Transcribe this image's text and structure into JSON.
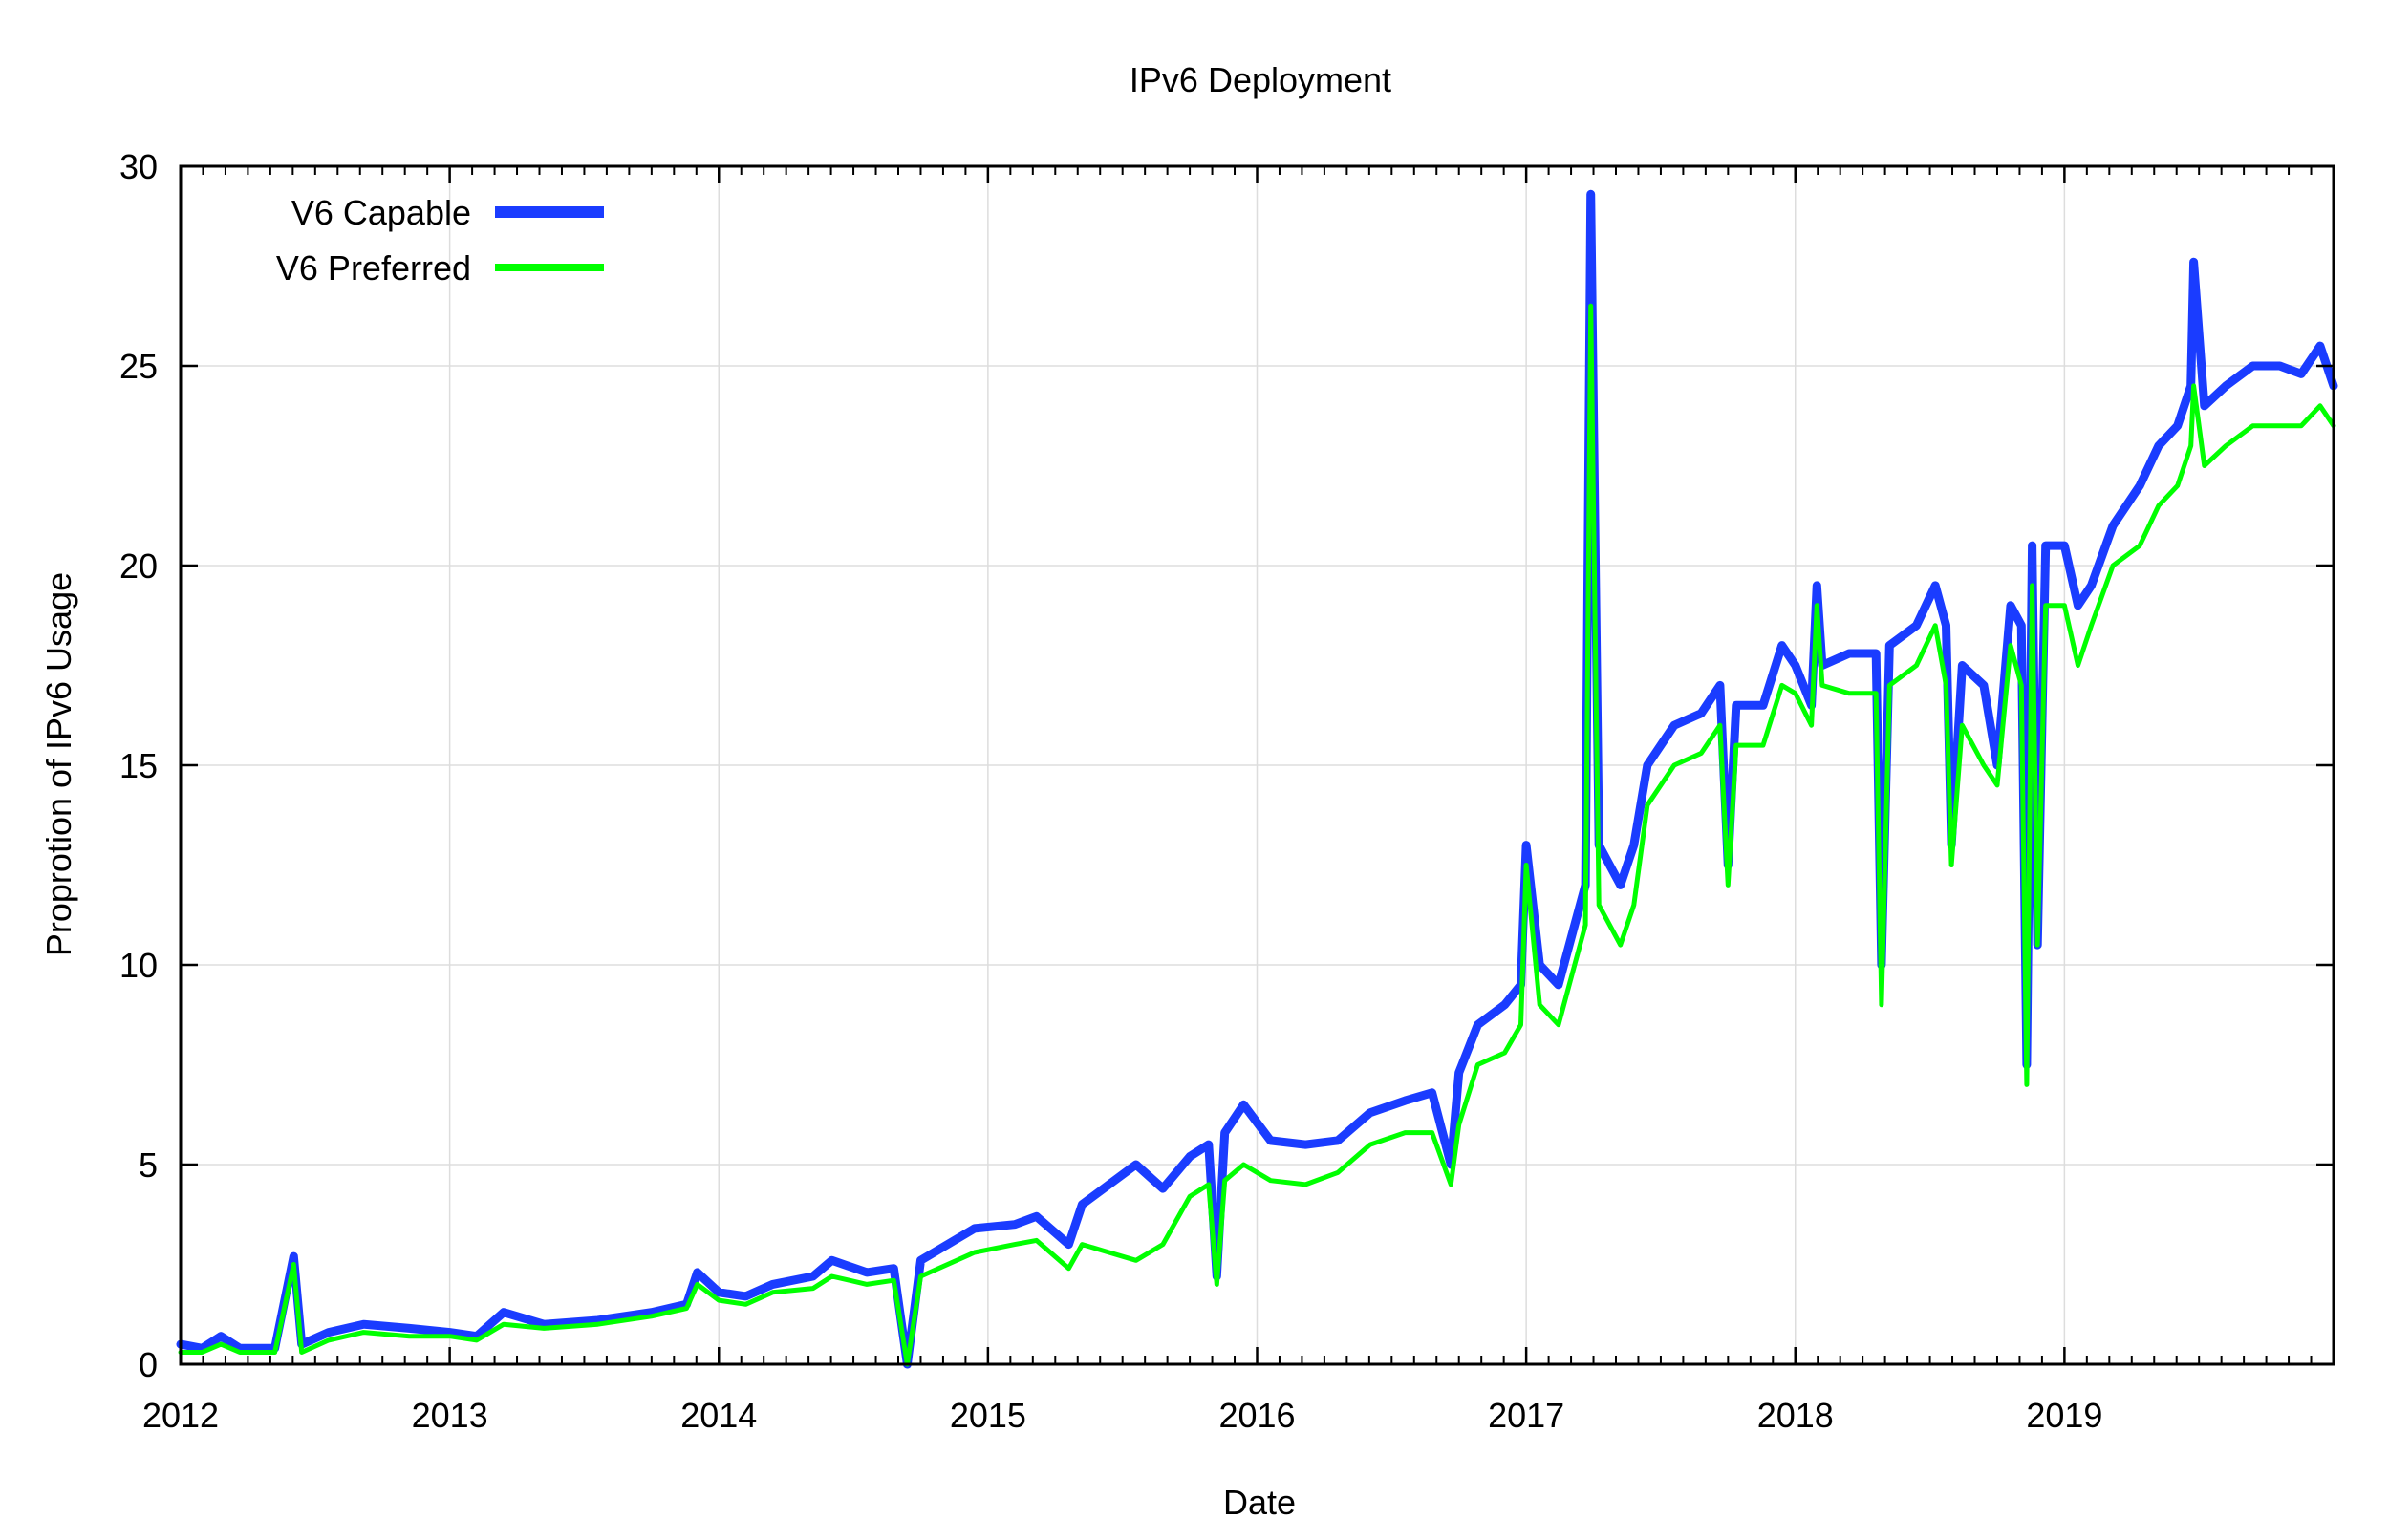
{
  "chart_data": {
    "type": "line",
    "title": "IPv6 Deployment",
    "xlabel": "Date",
    "ylabel": "Proprotion of IPv6 Usage",
    "xlim": [
      2012.0,
      2020.0
    ],
    "ylim": [
      0,
      30
    ],
    "x_ticks": [
      "2012",
      "2013",
      "2014",
      "2015",
      "2016",
      "2017",
      "2018",
      "2019"
    ],
    "y_ticks": [
      "0",
      "5",
      "10",
      "15",
      "20",
      "25",
      "30"
    ],
    "grid": true,
    "legend": "top-left",
    "colors": {
      "V6 Capable": "#1a3cff",
      "V6 Preferred": "#00ff00"
    },
    "series": [
      {
        "name": "V6 Capable",
        "points": [
          [
            2012.0,
            0.5
          ],
          [
            2012.08,
            0.4
          ],
          [
            2012.15,
            0.7
          ],
          [
            2012.22,
            0.4
          ],
          [
            2012.35,
            0.4
          ],
          [
            2012.42,
            2.7
          ],
          [
            2012.45,
            0.5
          ],
          [
            2012.55,
            0.8
          ],
          [
            2012.68,
            1.0
          ],
          [
            2012.85,
            0.9
          ],
          [
            2013.0,
            0.8
          ],
          [
            2013.1,
            0.7
          ],
          [
            2013.2,
            1.3
          ],
          [
            2013.35,
            1.0
          ],
          [
            2013.55,
            1.1
          ],
          [
            2013.75,
            1.3
          ],
          [
            2013.88,
            1.5
          ],
          [
            2013.92,
            2.3
          ],
          [
            2014.0,
            1.8
          ],
          [
            2014.1,
            1.7
          ],
          [
            2014.2,
            2.0
          ],
          [
            2014.35,
            2.2
          ],
          [
            2014.42,
            2.6
          ],
          [
            2014.55,
            2.3
          ],
          [
            2014.65,
            2.4
          ],
          [
            2014.7,
            0.0
          ],
          [
            2014.75,
            2.6
          ],
          [
            2014.95,
            3.4
          ],
          [
            2015.1,
            3.5
          ],
          [
            2015.18,
            3.7
          ],
          [
            2015.3,
            3.0
          ],
          [
            2015.35,
            4.0
          ],
          [
            2015.45,
            4.5
          ],
          [
            2015.55,
            5.0
          ],
          [
            2015.65,
            4.4
          ],
          [
            2015.75,
            5.2
          ],
          [
            2015.82,
            5.5
          ],
          [
            2015.85,
            2.2
          ],
          [
            2015.88,
            5.8
          ],
          [
            2015.95,
            6.5
          ],
          [
            2016.05,
            5.6
          ],
          [
            2016.18,
            5.5
          ],
          [
            2016.3,
            5.6
          ],
          [
            2016.42,
            6.3
          ],
          [
            2016.55,
            6.6
          ],
          [
            2016.65,
            6.8
          ],
          [
            2016.72,
            5.0
          ],
          [
            2016.75,
            7.3
          ],
          [
            2016.82,
            8.5
          ],
          [
            2016.92,
            9.0
          ],
          [
            2016.98,
            9.5
          ],
          [
            2017.0,
            13.0
          ],
          [
            2017.05,
            10.0
          ],
          [
            2017.12,
            9.5
          ],
          [
            2017.18,
            11.0
          ],
          [
            2017.22,
            12.0
          ],
          [
            2017.24,
            29.3
          ],
          [
            2017.27,
            13.0
          ],
          [
            2017.35,
            12.0
          ],
          [
            2017.4,
            13.0
          ],
          [
            2017.45,
            15.0
          ],
          [
            2017.55,
            16.0
          ],
          [
            2017.65,
            16.3
          ],
          [
            2017.72,
            17.0
          ],
          [
            2017.75,
            12.5
          ],
          [
            2017.78,
            16.5
          ],
          [
            2017.88,
            16.5
          ],
          [
            2017.95,
            18.0
          ],
          [
            2018.0,
            17.5
          ],
          [
            2018.06,
            16.5
          ],
          [
            2018.08,
            19.5
          ],
          [
            2018.1,
            17.5
          ],
          [
            2018.2,
            17.8
          ],
          [
            2018.3,
            17.8
          ],
          [
            2018.32,
            10.0
          ],
          [
            2018.35,
            18.0
          ],
          [
            2018.45,
            18.5
          ],
          [
            2018.52,
            19.5
          ],
          [
            2018.56,
            18.5
          ],
          [
            2018.58,
            13.0
          ],
          [
            2018.62,
            17.5
          ],
          [
            2018.7,
            17.0
          ],
          [
            2018.75,
            15.0
          ],
          [
            2018.8,
            19.0
          ],
          [
            2018.84,
            18.5
          ],
          [
            2018.86,
            7.5
          ],
          [
            2018.88,
            20.5
          ],
          [
            2018.9,
            10.5
          ],
          [
            2018.93,
            20.5
          ],
          [
            2019.0,
            20.5
          ],
          [
            2019.05,
            19.0
          ],
          [
            2019.1,
            19.5
          ],
          [
            2019.18,
            21.0
          ],
          [
            2019.28,
            22.0
          ],
          [
            2019.35,
            23.0
          ],
          [
            2019.42,
            23.5
          ],
          [
            2019.47,
            24.5
          ],
          [
            2019.48,
            27.6
          ],
          [
            2019.52,
            24.0
          ],
          [
            2019.6,
            24.5
          ],
          [
            2019.7,
            25.0
          ],
          [
            2019.8,
            25.0
          ],
          [
            2019.88,
            24.8
          ],
          [
            2019.95,
            25.5
          ],
          [
            2020.0,
            24.5
          ]
        ]
      },
      {
        "name": "V6 Preferred",
        "points": [
          [
            2012.0,
            0.3
          ],
          [
            2012.08,
            0.3
          ],
          [
            2012.15,
            0.5
          ],
          [
            2012.22,
            0.3
          ],
          [
            2012.35,
            0.3
          ],
          [
            2012.42,
            2.5
          ],
          [
            2012.45,
            0.3
          ],
          [
            2012.55,
            0.6
          ],
          [
            2012.68,
            0.8
          ],
          [
            2012.85,
            0.7
          ],
          [
            2013.0,
            0.7
          ],
          [
            2013.1,
            0.6
          ],
          [
            2013.2,
            1.0
          ],
          [
            2013.35,
            0.9
          ],
          [
            2013.55,
            1.0
          ],
          [
            2013.75,
            1.2
          ],
          [
            2013.88,
            1.4
          ],
          [
            2013.92,
            2.0
          ],
          [
            2014.0,
            1.6
          ],
          [
            2014.1,
            1.5
          ],
          [
            2014.2,
            1.8
          ],
          [
            2014.35,
            1.9
          ],
          [
            2014.42,
            2.2
          ],
          [
            2014.55,
            2.0
          ],
          [
            2014.65,
            2.1
          ],
          [
            2014.7,
            0.0
          ],
          [
            2014.75,
            2.2
          ],
          [
            2014.95,
            2.8
          ],
          [
            2015.1,
            3.0
          ],
          [
            2015.18,
            3.1
          ],
          [
            2015.3,
            2.4
          ],
          [
            2015.35,
            3.0
          ],
          [
            2015.45,
            2.8
          ],
          [
            2015.55,
            2.6
          ],
          [
            2015.65,
            3.0
          ],
          [
            2015.75,
            4.2
          ],
          [
            2015.82,
            4.5
          ],
          [
            2015.85,
            2.0
          ],
          [
            2015.88,
            4.6
          ],
          [
            2015.95,
            5.0
          ],
          [
            2016.05,
            4.6
          ],
          [
            2016.18,
            4.5
          ],
          [
            2016.3,
            4.8
          ],
          [
            2016.42,
            5.5
          ],
          [
            2016.55,
            5.8
          ],
          [
            2016.65,
            5.8
          ],
          [
            2016.72,
            4.5
          ],
          [
            2016.75,
            6.0
          ],
          [
            2016.82,
            7.5
          ],
          [
            2016.92,
            7.8
          ],
          [
            2016.98,
            8.5
          ],
          [
            2017.0,
            12.5
          ],
          [
            2017.05,
            9.0
          ],
          [
            2017.12,
            8.5
          ],
          [
            2017.18,
            10.0
          ],
          [
            2017.22,
            11.0
          ],
          [
            2017.24,
            26.5
          ],
          [
            2017.27,
            11.5
          ],
          [
            2017.35,
            10.5
          ],
          [
            2017.4,
            11.5
          ],
          [
            2017.45,
            14.0
          ],
          [
            2017.55,
            15.0
          ],
          [
            2017.65,
            15.3
          ],
          [
            2017.72,
            16.0
          ],
          [
            2017.75,
            12.0
          ],
          [
            2017.78,
            15.5
          ],
          [
            2017.88,
            15.5
          ],
          [
            2017.95,
            17.0
          ],
          [
            2018.0,
            16.8
          ],
          [
            2018.06,
            16.0
          ],
          [
            2018.08,
            19.0
          ],
          [
            2018.1,
            17.0
          ],
          [
            2018.2,
            16.8
          ],
          [
            2018.3,
            16.8
          ],
          [
            2018.32,
            9.0
          ],
          [
            2018.35,
            17.0
          ],
          [
            2018.45,
            17.5
          ],
          [
            2018.52,
            18.5
          ],
          [
            2018.56,
            17.0
          ],
          [
            2018.58,
            12.5
          ],
          [
            2018.62,
            16.0
          ],
          [
            2018.7,
            15.0
          ],
          [
            2018.75,
            14.5
          ],
          [
            2018.8,
            18.0
          ],
          [
            2018.84,
            17.0
          ],
          [
            2018.86,
            7.0
          ],
          [
            2018.88,
            19.5
          ],
          [
            2018.9,
            10.5
          ],
          [
            2018.93,
            19.0
          ],
          [
            2019.0,
            19.0
          ],
          [
            2019.05,
            17.5
          ],
          [
            2019.1,
            18.5
          ],
          [
            2019.18,
            20.0
          ],
          [
            2019.28,
            20.5
          ],
          [
            2019.35,
            21.5
          ],
          [
            2019.42,
            22.0
          ],
          [
            2019.47,
            23.0
          ],
          [
            2019.48,
            24.5
          ],
          [
            2019.52,
            22.5
          ],
          [
            2019.6,
            23.0
          ],
          [
            2019.7,
            23.5
          ],
          [
            2019.8,
            23.5
          ],
          [
            2019.88,
            23.5
          ],
          [
            2019.95,
            24.0
          ],
          [
            2020.0,
            23.5
          ]
        ]
      }
    ]
  }
}
